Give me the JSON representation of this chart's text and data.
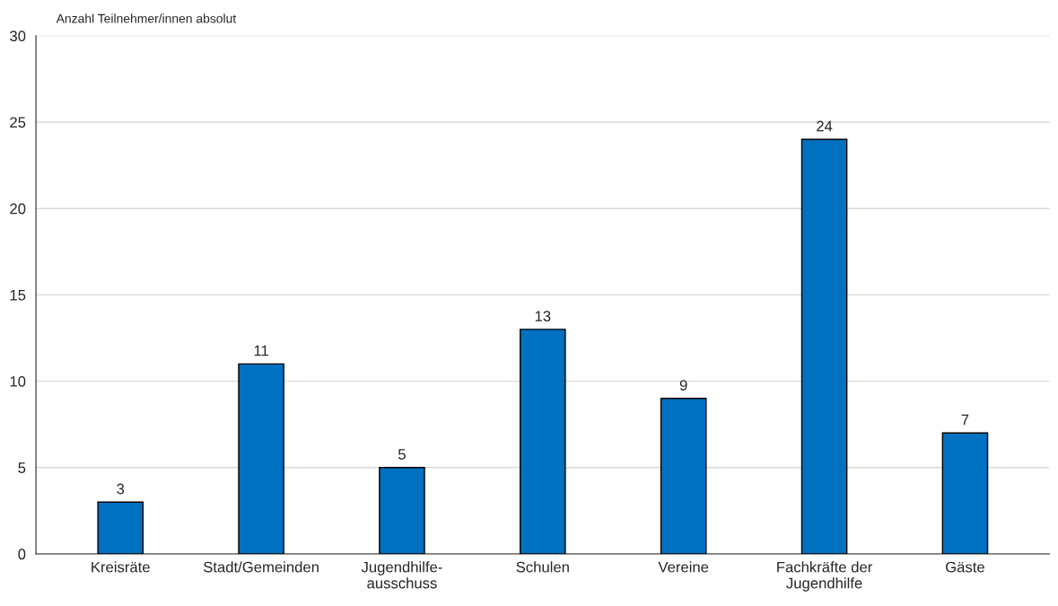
{
  "chart_data": {
    "type": "bar",
    "ylabel": "Anzahl Teilnehmer/innen absolut",
    "categories": [
      "Kreisräte",
      "Stadt/Gemeinden",
      "Jugendhilfe-\nausschuss",
      "Schulen",
      "Vereine",
      "Fachkräfte der\nJugendhilfe",
      "Gäste"
    ],
    "values": [
      3,
      11,
      5,
      13,
      9,
      24,
      7
    ],
    "color": "#0070c0",
    "ylim": [
      0,
      30
    ],
    "yticks": [
      0,
      5,
      10,
      15,
      20,
      25,
      30
    ],
    "grid": "y",
    "data_labels": true,
    "legend": false
  }
}
